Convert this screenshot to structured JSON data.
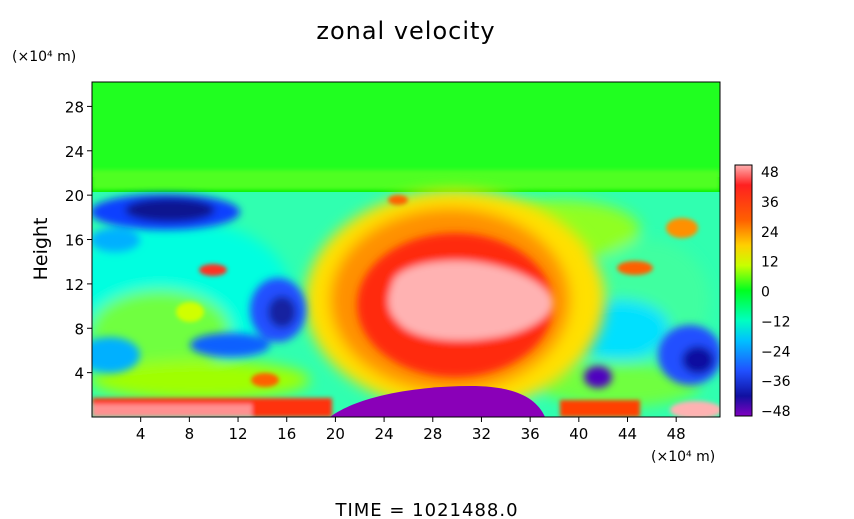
{
  "chart_data": {
    "type": "heatmap",
    "title": "zonal velocity",
    "ylabel": "Height",
    "yunit": "(×10⁴ m)",
    "xunit": "(×10⁴ m)",
    "xlim": [
      0,
      51.6
    ],
    "ylim": [
      0,
      30.2
    ],
    "xticks": [
      "4",
      "8",
      "12",
      "16",
      "20",
      "24",
      "28",
      "32",
      "36",
      "40",
      "44",
      "48"
    ],
    "yticks": [
      "4",
      "8",
      "12",
      "16",
      "20",
      "24",
      "28"
    ],
    "colorbar": {
      "labels": [
        "48",
        "36",
        "24",
        "12",
        "0",
        "−12",
        "−24",
        "−36",
        "−48"
      ],
      "range": [
        -48,
        48
      ]
    },
    "footer": "TIME = 1021488.0",
    "regions": [
      {
        "feature": "upper uniform layer",
        "x": [
          0,
          51.6
        ],
        "y": [
          20,
          30.2
        ],
        "value": 0
      },
      {
        "feature": "central jet core",
        "x": [
          24,
          37
        ],
        "y": [
          6,
          14
        ],
        "value": 48
      },
      {
        "feature": "surrounding jet",
        "x": [
          21,
          39
        ],
        "y": [
          4,
          17
        ],
        "value": 40
      },
      {
        "feature": "warm halo",
        "x": [
          19,
          41
        ],
        "y": [
          2,
          20
        ],
        "value": 24
      },
      {
        "feature": "upper-left negative cell",
        "x": [
          2,
          13
        ],
        "y": [
          16,
          20
        ],
        "value": -40
      },
      {
        "feature": "mid negative cell",
        "x": [
          13,
          18
        ],
        "y": [
          6,
          11
        ],
        "value": -38
      },
      {
        "feature": "right negative cell",
        "x": [
          46,
          51.6
        ],
        "y": [
          3,
          8
        ],
        "value": -40
      },
      {
        "feature": "small negative cell",
        "x": [
          39,
          42
        ],
        "y": [
          2,
          4
        ],
        "value": -40
      },
      {
        "feature": "surface negative cell",
        "x": [
          20,
          36
        ],
        "y": [
          0,
          2.5
        ],
        "value": -48
      },
      {
        "feature": "surface positive strip left",
        "x": [
          0,
          14
        ],
        "y": [
          0,
          1.5
        ],
        "value": 36
      },
      {
        "feature": "surface positive cell right",
        "x": [
          47,
          51.6
        ],
        "y": [
          0,
          1.5
        ],
        "value": 48
      }
    ]
  }
}
